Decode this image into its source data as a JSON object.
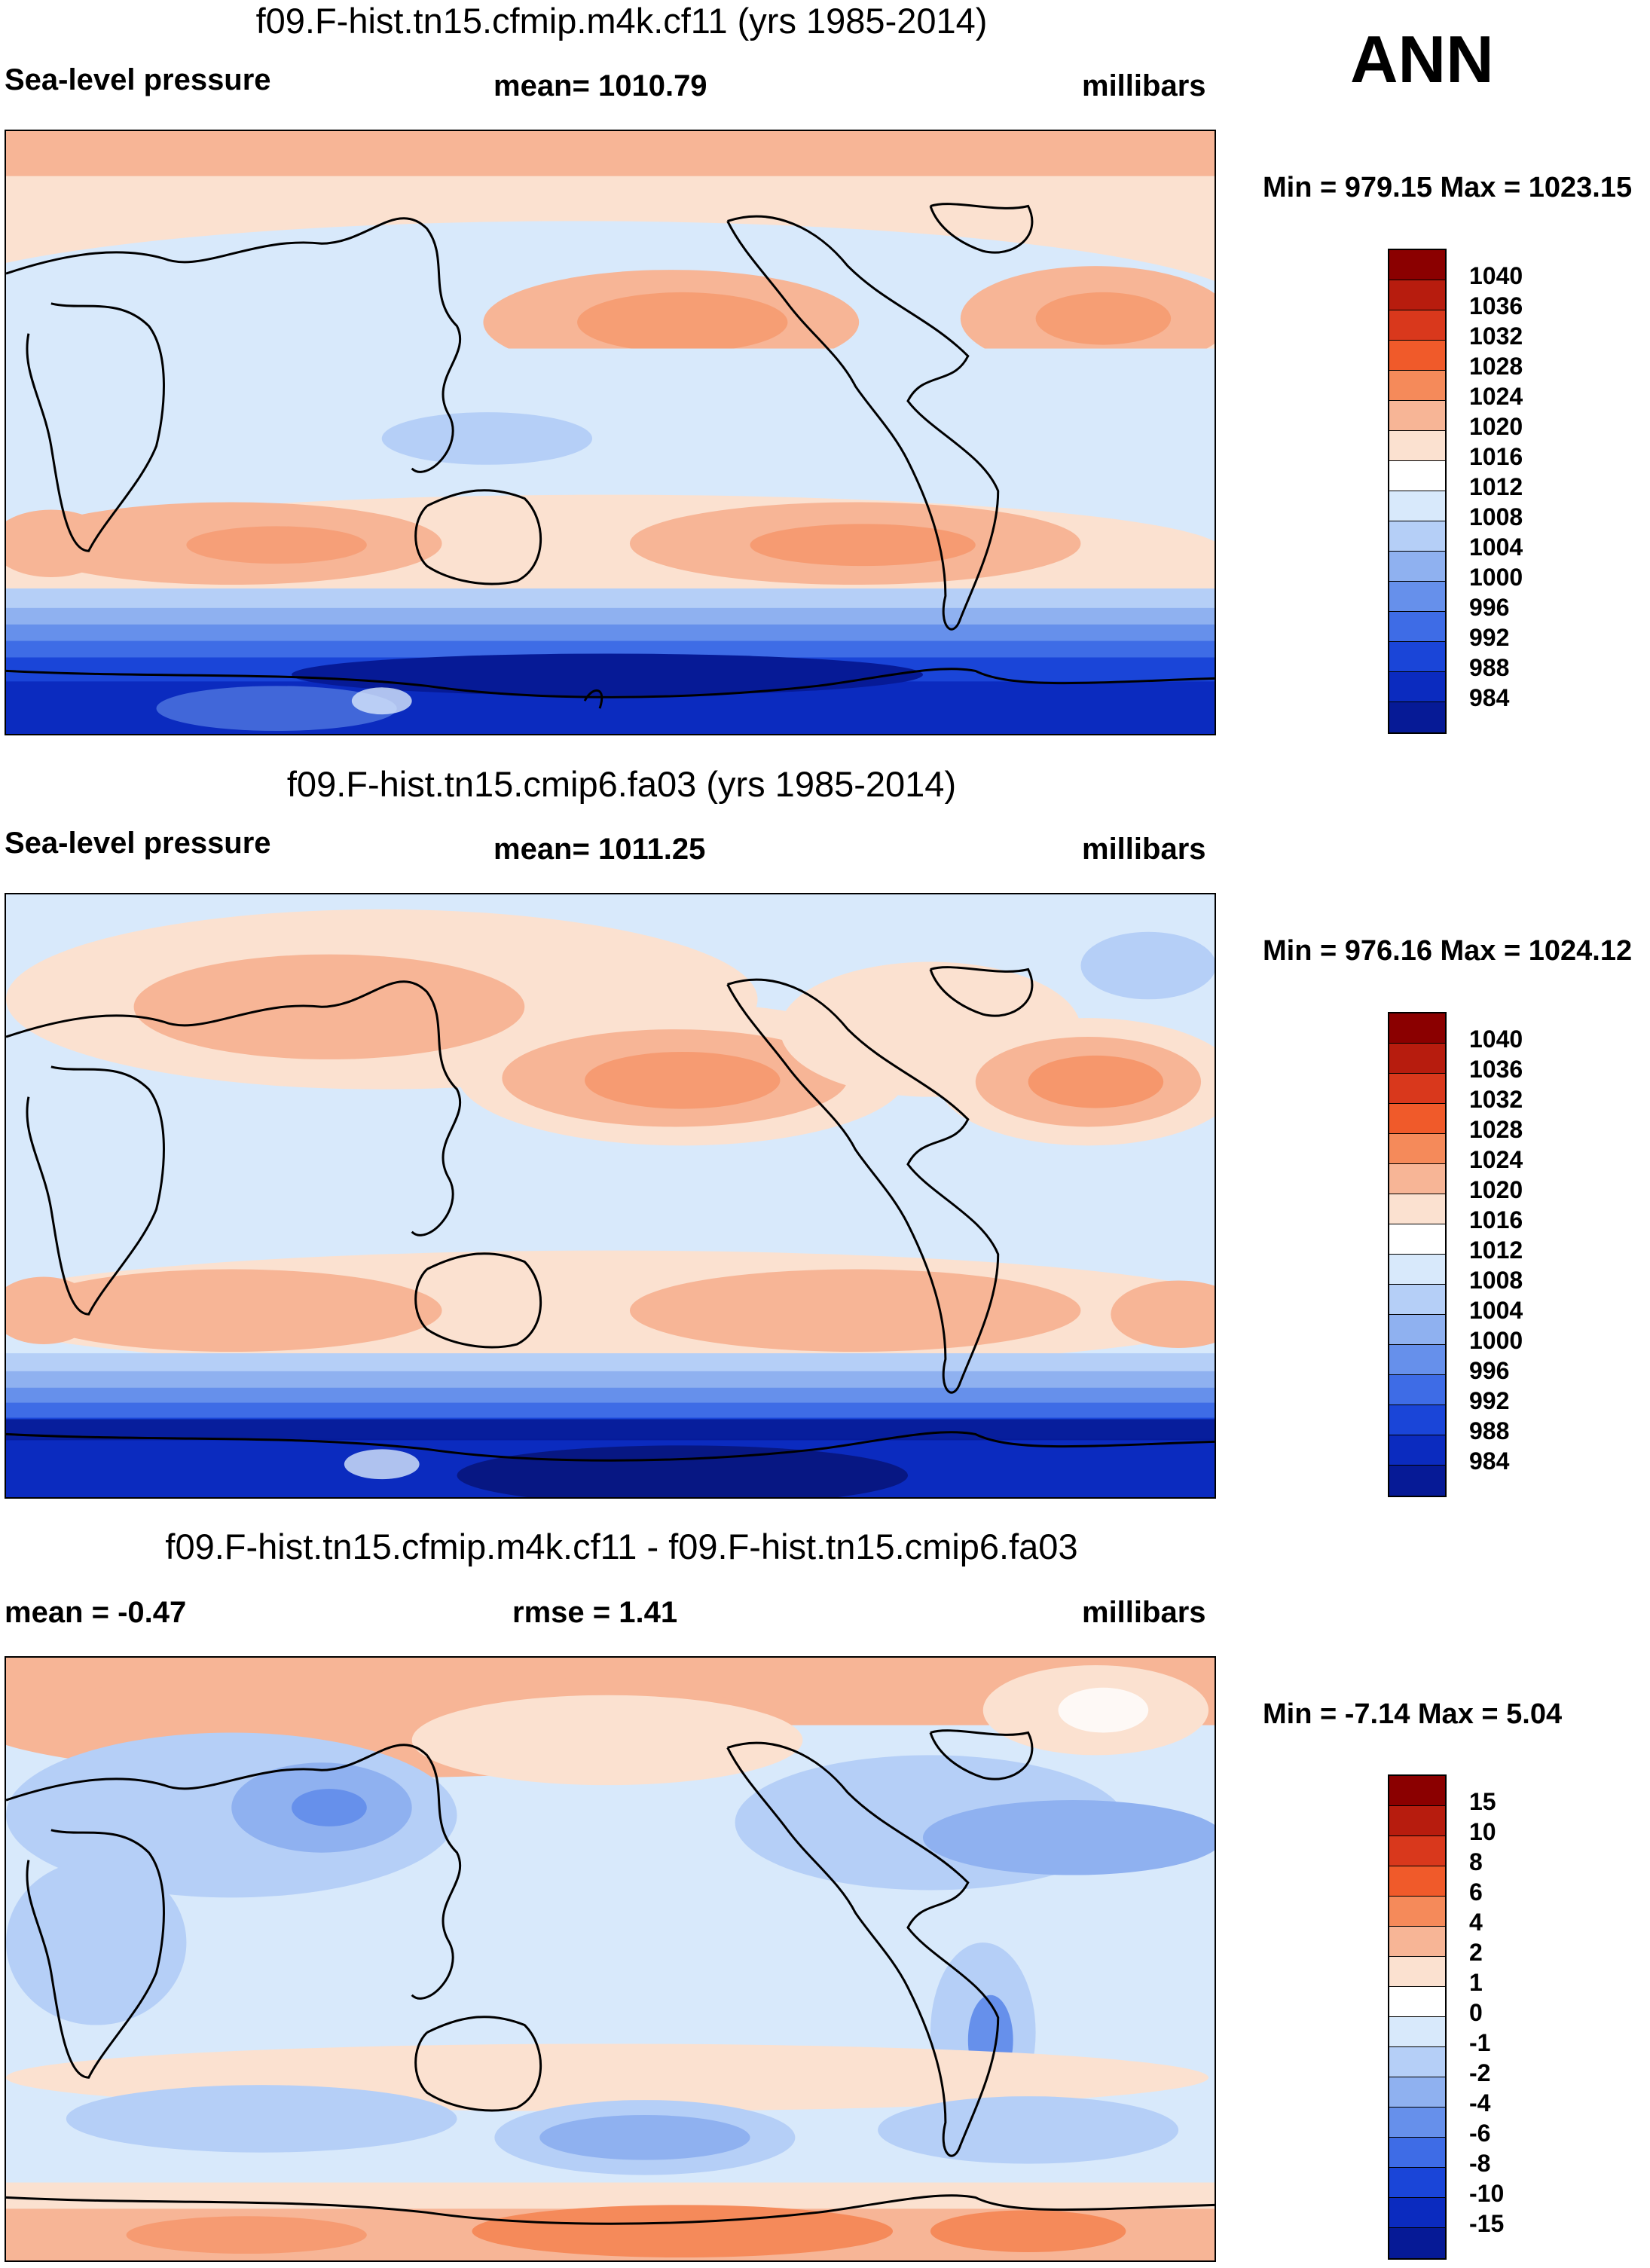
{
  "season": "ANN",
  "colors": {
    "abs_scale": [
      "#8b0000",
      "#b71c0e",
      "#d9381c",
      "#f05a2a",
      "#f58a5a",
      "#f7b596",
      "#fbe1d0",
      "#ffffff",
      "#d8e9fb",
      "#b5cff7",
      "#8fb1f0",
      "#6690eb",
      "#3e6ce6",
      "#1a45d8",
      "#0b2bbf",
      "#061a96",
      "#050f6a"
    ],
    "diff_scale": [
      "#8b0000",
      "#b71c0e",
      "#d9381c",
      "#f05a2a",
      "#f58a5a",
      "#f7b596",
      "#fbe1d0",
      "#ffffff",
      "#d8e9fb",
      "#b5cff7",
      "#8fb1f0",
      "#6690eb",
      "#3e6ce6",
      "#1a45d8",
      "#0b2bbf",
      "#061a96",
      "#050f6a"
    ]
  },
  "panels": [
    {
      "title": "f09.F-hist.tn15.cfmip.m4k.cf11 (yrs 1985-2014)",
      "left_label": "Sea-level pressure",
      "center_label": "mean= 1010.79",
      "units": "millibars",
      "minmax": "Min = 979.15 Max = 1023.15",
      "colorbar_ticks": [
        "1040",
        "1036",
        "1032",
        "1028",
        "1024",
        "1020",
        "1016",
        "1012",
        "1008",
        "1004",
        "1000",
        "996",
        "992",
        "988",
        "984"
      ]
    },
    {
      "title": "f09.F-hist.tn15.cmip6.fa03 (yrs 1985-2014)",
      "left_label": "Sea-level pressure",
      "center_label": "mean= 1011.25",
      "units": "millibars",
      "minmax": "Min = 976.16 Max = 1024.12",
      "colorbar_ticks": [
        "1040",
        "1036",
        "1032",
        "1028",
        "1024",
        "1020",
        "1016",
        "1012",
        "1008",
        "1004",
        "1000",
        "996",
        "992",
        "988",
        "984"
      ]
    },
    {
      "title": "f09.F-hist.tn15.cfmip.m4k.cf11 - f09.F-hist.tn15.cmip6.fa03",
      "left_label": "mean =  -0.47",
      "center_label": "rmse =   1.41",
      "units": "millibars",
      "minmax": "Min =  -7.14 Max =   5.04",
      "colorbar_ticks": [
        "15",
        "10",
        "8",
        "6",
        "4",
        "2",
        "1",
        "0",
        "-1",
        "-2",
        "-4",
        "-6",
        "-8",
        "-10",
        "-15"
      ]
    }
  ]
}
